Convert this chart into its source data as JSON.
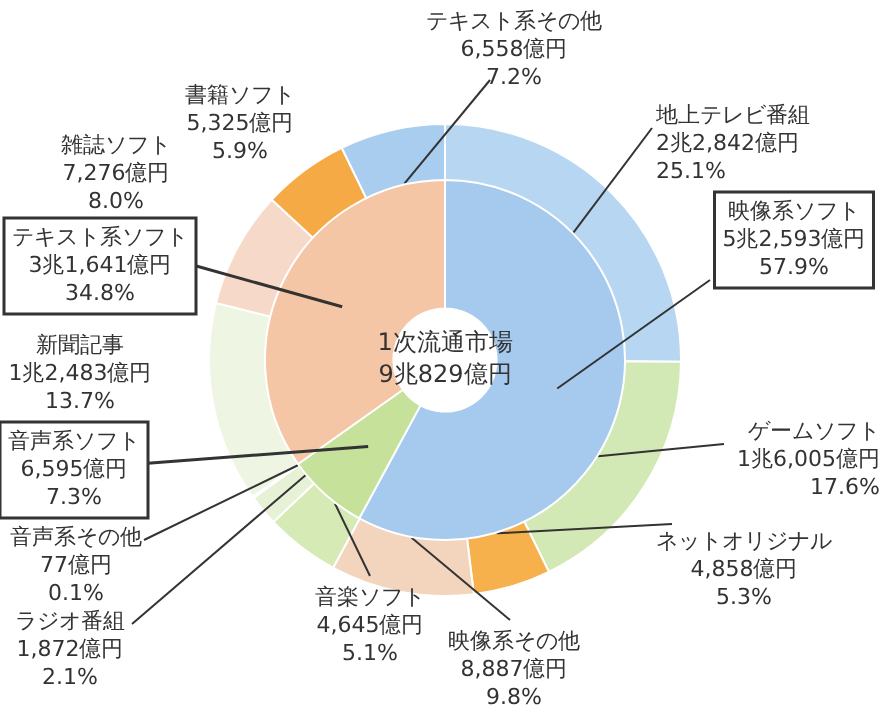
{
  "chart_data": [
    {
      "type": "donut",
      "categories": [
        "地上テレビ番組",
        "ゲームソフト",
        "ネットオリジナル",
        "映像系その他",
        "音楽ソフト",
        "ラジオ番組",
        "音声系その他",
        "新聞記事",
        "雑誌ソフト",
        "書籍ソフト",
        "テキスト系その他"
      ],
      "values": [
        25.1,
        17.6,
        5.3,
        9.8,
        5.1,
        2.1,
        0.1,
        13.7,
        8.0,
        5.9,
        7.2
      ],
      "colors": [
        "#b7d6f1",
        "#d3e9b5",
        "#f6b04c",
        "#f3d5bd",
        "#d6eab6",
        "#e6f1d6",
        "#c9e0f3",
        "#eef5e3",
        "#f6d9c8",
        "#f6aa45",
        "#a8cdee"
      ],
      "value_labels": [
        "2兆2,842億円\n25.1%",
        "1兆6,005億円\n17.6%",
        "4,858億円\n5.3%",
        "8,887億円\n9.8%",
        "4,645億円\n5.1%",
        "1,872億円\n2.1%",
        "77億円\n0.1%",
        "1兆2,483億円\n13.7%",
        "7,276億円\n8.0%",
        "5,325億円\n5.9%",
        "6,558億円\n7.2%"
      ]
    },
    {
      "type": "donut",
      "categories": [
        "映像系ソフト",
        "音声系ソフト",
        "テキスト系ソフト"
      ],
      "values": [
        57.9,
        7.3,
        34.8
      ],
      "colors": [
        "#a6caee",
        "#c5e19a",
        "#f5c6a5"
      ],
      "value_labels": [
        "5兆2,593億円\n57.9%",
        "6,595億円\n7.3%",
        "3兆1,641億円\n34.8%"
      ],
      "annotations": [
        "1次流通市場",
        "9兆829億円"
      ]
    }
  ]
}
